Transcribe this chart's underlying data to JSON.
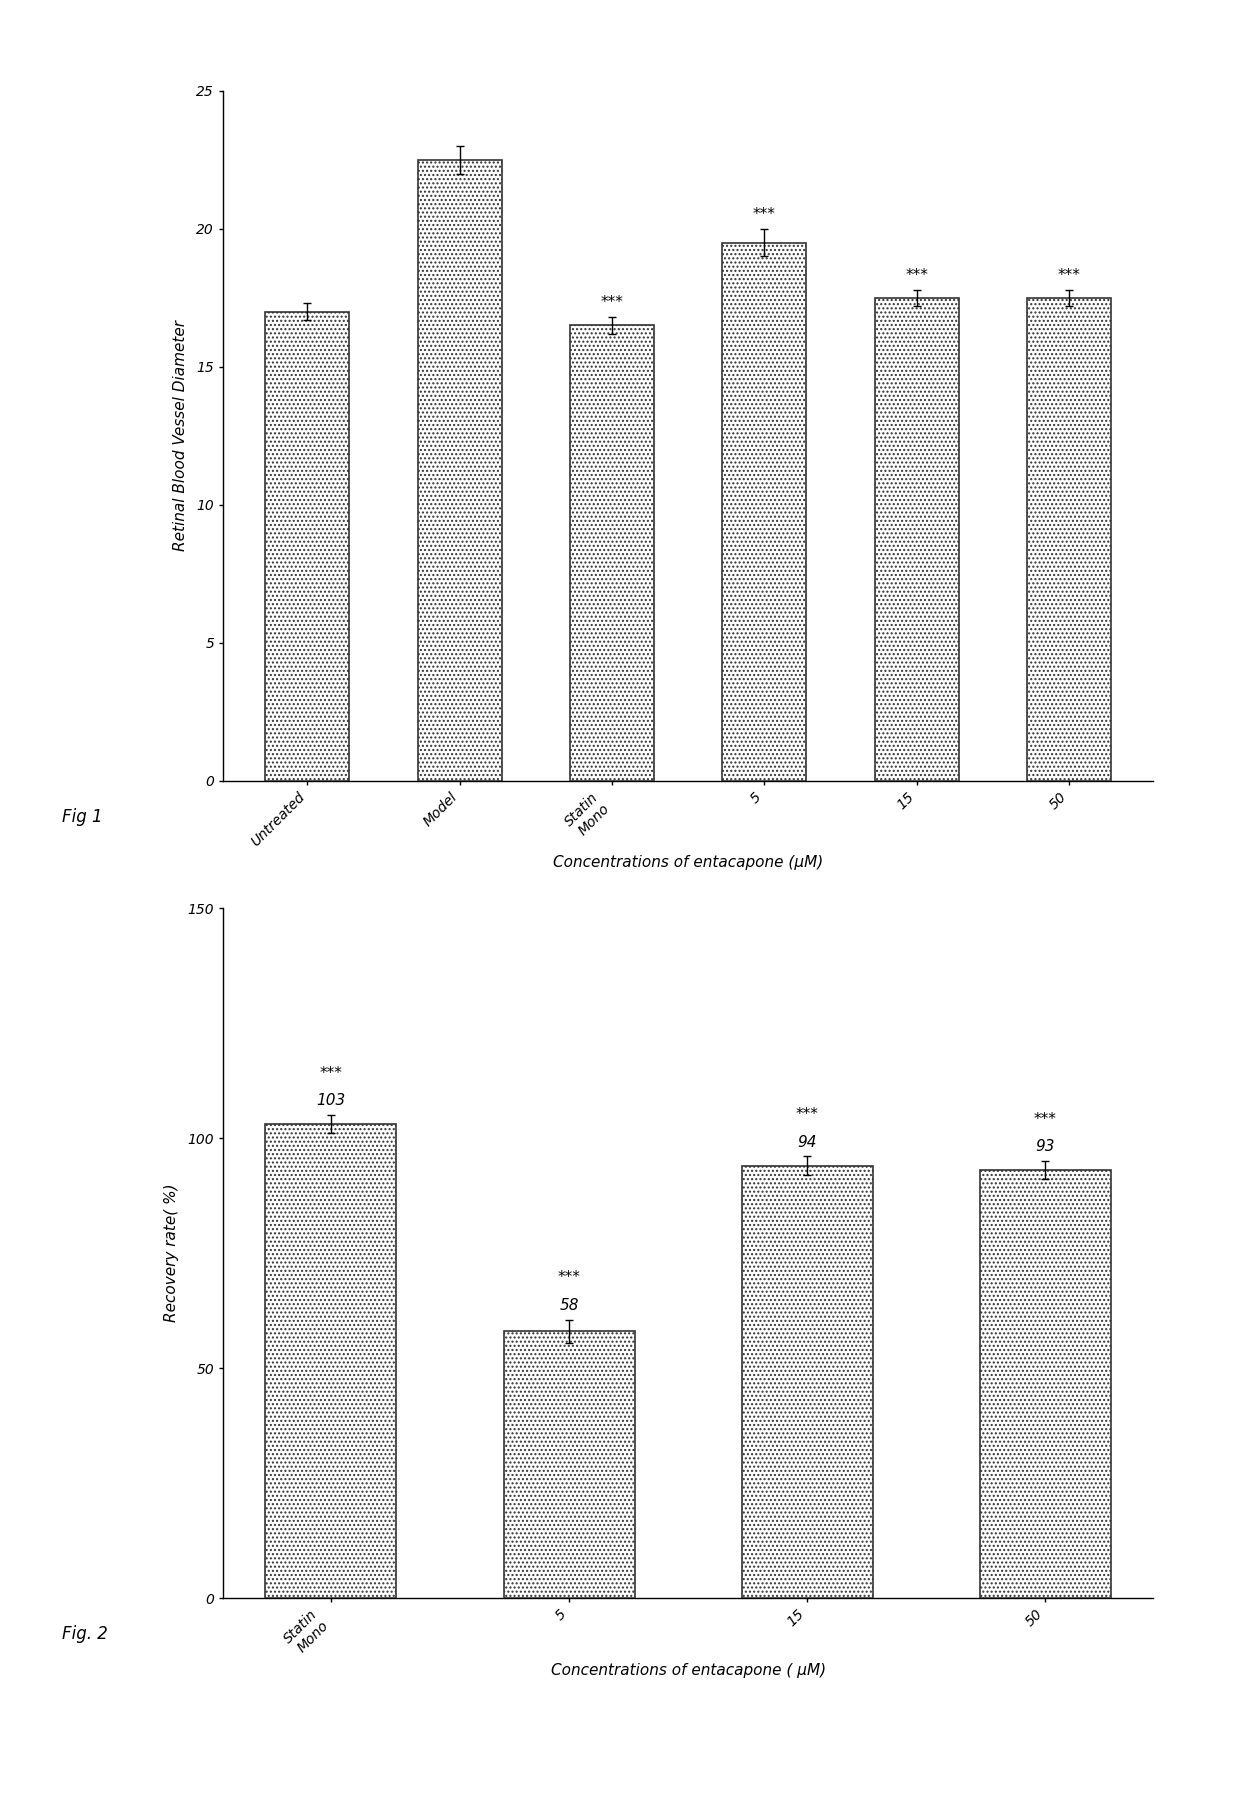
{
  "fig1": {
    "categories": [
      "Untreated",
      "Model",
      "Statin\nMono",
      "5",
      "15",
      "50"
    ],
    "values": [
      17.0,
      22.5,
      16.5,
      19.5,
      17.5,
      17.5
    ],
    "errors": [
      0.3,
      0.5,
      0.3,
      0.5,
      0.3,
      0.3
    ],
    "significance": [
      "",
      "",
      "***",
      "***",
      "***",
      "***"
    ],
    "ylabel": "Retinal Blood Vessel Diameter",
    "xlabel": "Concentrations of entacapone (μM)",
    "ylim": [
      0,
      25
    ],
    "yticks": [
      0,
      5,
      10,
      15,
      20,
      25
    ],
    "fig_label": "Fig 1"
  },
  "fig2": {
    "categories": [
      "Statin\nMono",
      "5",
      "15",
      "50"
    ],
    "values": [
      103,
      58,
      94,
      93
    ],
    "errors": [
      2.0,
      2.5,
      2.0,
      2.0
    ],
    "significance": [
      "***",
      "***",
      "***",
      "***"
    ],
    "bar_labels": [
      "103",
      "58",
      "94",
      "93"
    ],
    "ylabel": "Recovery rate（ %）",
    "xlabel": "Concentrations of entacapone （ μM）",
    "ylim": [
      0,
      150
    ],
    "yticks": [
      0,
      50,
      100,
      150
    ],
    "fig_label": "Fig. 2"
  },
  "bar_color": "white",
  "bar_edgecolor": "#333333",
  "bar_linewidth": 1.2,
  "hatch": "....",
  "errorbar_color": "black",
  "sig_fontsize": 11,
  "tick_fontsize": 10,
  "ylabel_fontsize": 11,
  "xlabel_fontsize": 11,
  "fig_label_fontsize": 12
}
